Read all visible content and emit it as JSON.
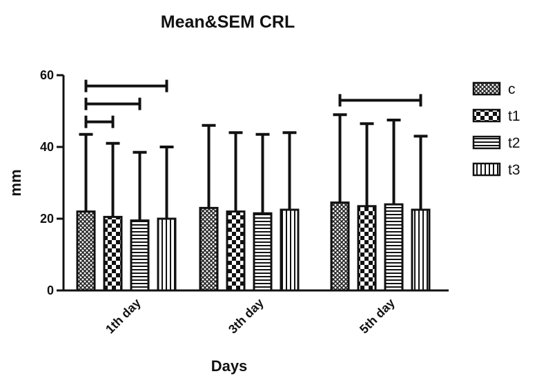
{
  "chart_data": {
    "type": "bar",
    "title": "Mean&SEM CRL",
    "xlabel": "Days",
    "ylabel": "mm",
    "ylim": [
      0,
      60
    ],
    "yticks": [
      0,
      20,
      40,
      60
    ],
    "categories": [
      "1th day",
      "3th day",
      "5th day"
    ],
    "series": [
      {
        "name": "c",
        "pattern": "crosshatch",
        "values": [
          22,
          23,
          24.5
        ],
        "error_upper": [
          43.5,
          46,
          49
        ]
      },
      {
        "name": "t1",
        "pattern": "checker",
        "values": [
          20.5,
          22,
          23.5
        ],
        "error_upper": [
          41,
          44,
          46.5
        ]
      },
      {
        "name": "t2",
        "pattern": "horizontal",
        "values": [
          19.5,
          21.5,
          24
        ],
        "error_upper": [
          38.5,
          43.5,
          47.5
        ]
      },
      {
        "name": "t3",
        "pattern": "vertical",
        "values": [
          20,
          22.5,
          22.5
        ],
        "error_upper": [
          40,
          44,
          43
        ]
      }
    ],
    "significance_brackets": [
      {
        "category": "1th day",
        "from": "c",
        "to": "t1",
        "y": 47
      },
      {
        "category": "1th day",
        "from": "c",
        "to": "t2",
        "y": 52
      },
      {
        "category": "1th day",
        "from": "c",
        "to": "t3",
        "y": 57
      },
      {
        "category": "5th day",
        "from": "c",
        "to": "t3",
        "y": 53
      }
    ],
    "legend_position": "right",
    "grid": false
  }
}
